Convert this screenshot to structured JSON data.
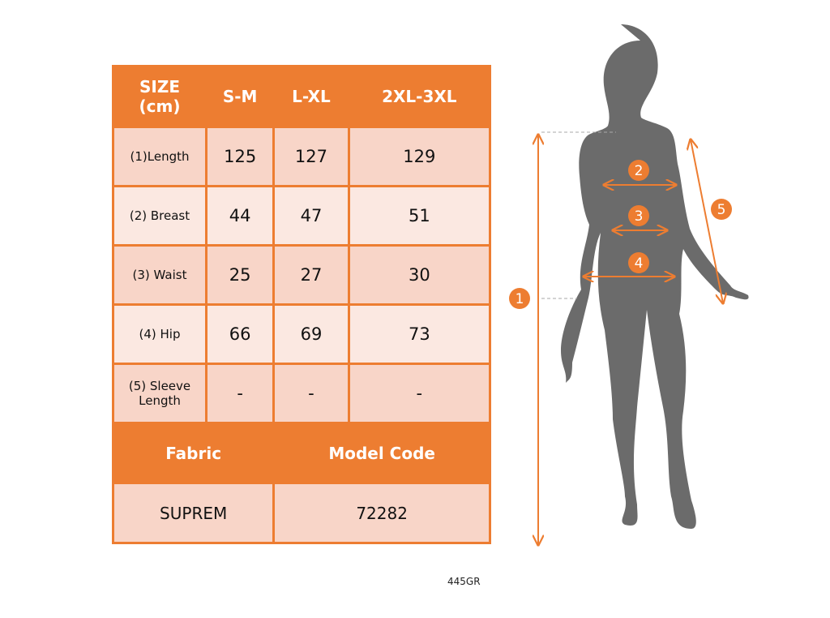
{
  "table": {
    "header": [
      "SIZE\n(cm)",
      "S-M",
      "L-XL",
      "2XL-3XL"
    ],
    "header_size": "SIZE",
    "header_unit": "(cm)",
    "sizes": [
      "S-M",
      "L-XL",
      "2XL-3XL"
    ],
    "rows": [
      {
        "label": "(1)Length",
        "values": [
          "125",
          "127",
          "129"
        ]
      },
      {
        "label": "(2) Breast",
        "values": [
          "44",
          "47",
          "51"
        ]
      },
      {
        "label": "(3) Waist",
        "values": [
          "25",
          "27",
          "30"
        ]
      },
      {
        "label": "(4) Hip",
        "values": [
          "66",
          "69",
          "73"
        ]
      },
      {
        "label": "(5) Sleeve Length",
        "values": [
          "-",
          "-",
          "-"
        ]
      }
    ],
    "fabric_label": "Fabric",
    "model_code_label": "Model Code",
    "fabric": "SUPREM",
    "model_code": "72282"
  },
  "product_code": "445GR",
  "figure": {
    "markers": [
      "1",
      "2",
      "3",
      "4",
      "5"
    ]
  },
  "colors": {
    "accent": "#ED7D31",
    "cell_dark": "#F8D5C8",
    "cell_light": "#FBE8E1",
    "silhouette": "#6B6B6B"
  }
}
